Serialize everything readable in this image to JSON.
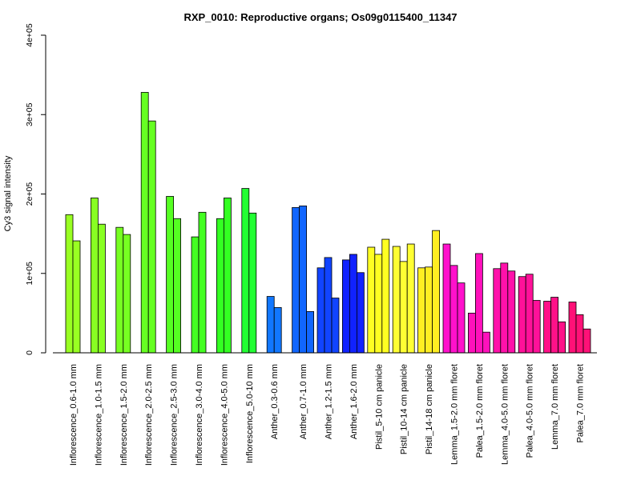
{
  "chart_data": {
    "type": "bar",
    "title": "RXP_0010: Reproductive organs; Os09g0115400_11347",
    "xlabel": "",
    "ylabel": "Cy3 signal intensity",
    "ylim": [
      0,
      400000
    ],
    "yticks": [
      0,
      100000,
      200000,
      300000,
      400000
    ],
    "ytick_labels": [
      "0",
      "1e+05",
      "2e+05",
      "3e+05",
      "4e+05"
    ],
    "grid": false,
    "legend": "none",
    "groups": [
      {
        "label": "Inflorescence_0.6-1.0 mm",
        "color": "#99ff22",
        "values": [
          174000,
          141000
        ]
      },
      {
        "label": "Inflorescence_1.0-1.5 mm",
        "color": "#88ff22",
        "values": [
          195000,
          162000
        ]
      },
      {
        "label": "Inflorescence_1.5-2.0 mm",
        "color": "#77ff22",
        "values": [
          158000,
          149000
        ]
      },
      {
        "label": "Inflorescence_2.0-2.5 mm",
        "color": "#66ff22",
        "values": [
          328000,
          292000
        ]
      },
      {
        "label": "Inflorescence_2.5-3.0 mm",
        "color": "#55ff22",
        "values": [
          197000,
          169000
        ]
      },
      {
        "label": "Inflorescence_3.0-4.0 mm",
        "color": "#44ff22",
        "values": [
          146000,
          177000
        ]
      },
      {
        "label": "Inflorescence_4.0-5.0 mm",
        "color": "#33ff22",
        "values": [
          169000,
          195000
        ]
      },
      {
        "label": "Inflorescence_5.0-10 mm",
        "color": "#22ff33",
        "values": [
          207000,
          176000
        ]
      },
      {
        "label": "Anther_0.3-0.6 mm",
        "color": "#1177ff",
        "values": [
          71000,
          57000
        ]
      },
      {
        "label": "Anther_0.7-1.0 mm",
        "color": "#1166ff",
        "values": [
          183000,
          185000,
          52000
        ]
      },
      {
        "label": "Anther_1.2-1.5 mm",
        "color": "#1144ff",
        "values": [
          107000,
          120000,
          69000
        ]
      },
      {
        "label": "Anther_1.6-2.0 mm",
        "color": "#1122ff",
        "values": [
          117000,
          124000,
          101000
        ]
      },
      {
        "label": "Pistil_5-10 cm panicle",
        "color": "#ffff22",
        "values": [
          133000,
          124000,
          143000
        ]
      },
      {
        "label": "Pistil_10-14 cm panicle",
        "color": "#ffff33",
        "values": [
          134000,
          115000,
          137000
        ]
      },
      {
        "label": "Pistil_14-18 cm panicle",
        "color": "#ffee22",
        "values": [
          107000,
          108000,
          154000
        ]
      },
      {
        "label": "Lemma_1.5-2.0 mm floret",
        "color": "#ff11cc",
        "values": [
          137000,
          110000,
          88000
        ]
      },
      {
        "label": "Palea_1.5-2.0 mm floret",
        "color": "#ff11bb",
        "values": [
          50000,
          125000,
          26000
        ]
      },
      {
        "label": "Lemma_4.0-5.0 mm floret",
        "color": "#ff11aa",
        "values": [
          106000,
          113000,
          103000
        ]
      },
      {
        "label": "Palea_4.0-5.0 mm floret",
        "color": "#ff1199",
        "values": [
          96000,
          99000,
          66000
        ]
      },
      {
        "label": "Lemma_7.0 mm floret",
        "color": "#ff1188",
        "values": [
          65000,
          70000,
          39000
        ]
      },
      {
        "label": "Palea_7.0 mm floret",
        "color": "#ff1177",
        "values": [
          64000,
          48000,
          30000
        ]
      }
    ]
  }
}
